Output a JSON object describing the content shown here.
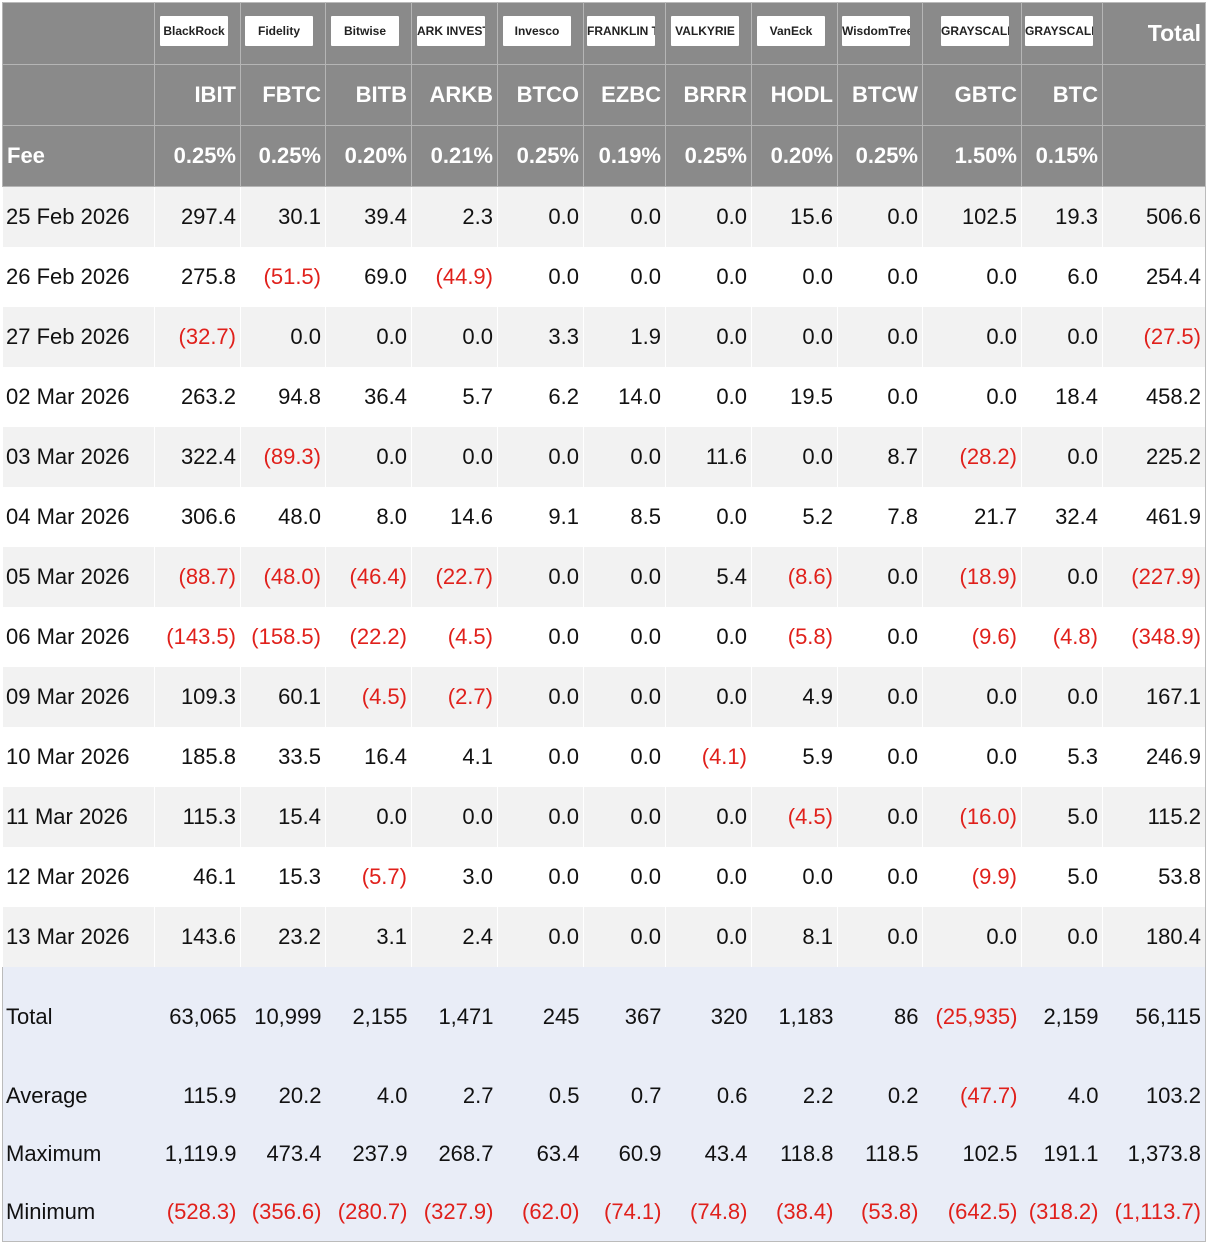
{
  "header": {
    "logos": [
      "BlackRock",
      "Fidelity",
      "Bitwise",
      "ARK INVEST",
      "Invesco",
      "FRANKLIN TEMPLETON",
      "VALKYRIE",
      "VanEck",
      "WisdomTree",
      "GRAYSCALE",
      "GRAYSCALE"
    ],
    "total_label": "Total",
    "tickers": [
      "IBIT",
      "FBTC",
      "BITB",
      "ARKB",
      "BTCO",
      "EZBC",
      "BRRR",
      "HODL",
      "BTCW",
      "GBTC",
      "BTC"
    ],
    "fee_label": "Fee",
    "fees": [
      "0.25%",
      "0.25%",
      "0.20%",
      "0.21%",
      "0.25%",
      "0.19%",
      "0.25%",
      "0.20%",
      "0.25%",
      "1.50%",
      "0.15%"
    ]
  },
  "rows": [
    {
      "date": "25 Feb 2026",
      "values": [
        "297.4",
        "30.1",
        "39.4",
        "2.3",
        "0.0",
        "0.0",
        "0.0",
        "15.6",
        "0.0",
        "102.5",
        "19.3",
        "506.6"
      ]
    },
    {
      "date": "26 Feb 2026",
      "values": [
        "275.8",
        "(51.5)",
        "69.0",
        "(44.9)",
        "0.0",
        "0.0",
        "0.0",
        "0.0",
        "0.0",
        "0.0",
        "6.0",
        "254.4"
      ]
    },
    {
      "date": "27 Feb 2026",
      "values": [
        "(32.7)",
        "0.0",
        "0.0",
        "0.0",
        "3.3",
        "1.9",
        "0.0",
        "0.0",
        "0.0",
        "0.0",
        "0.0",
        "(27.5)"
      ]
    },
    {
      "date": "02 Mar 2026",
      "values": [
        "263.2",
        "94.8",
        "36.4",
        "5.7",
        "6.2",
        "14.0",
        "0.0",
        "19.5",
        "0.0",
        "0.0",
        "18.4",
        "458.2"
      ]
    },
    {
      "date": "03 Mar 2026",
      "values": [
        "322.4",
        "(89.3)",
        "0.0",
        "0.0",
        "0.0",
        "0.0",
        "11.6",
        "0.0",
        "8.7",
        "(28.2)",
        "0.0",
        "225.2"
      ]
    },
    {
      "date": "04 Mar 2026",
      "values": [
        "306.6",
        "48.0",
        "8.0",
        "14.6",
        "9.1",
        "8.5",
        "0.0",
        "5.2",
        "7.8",
        "21.7",
        "32.4",
        "461.9"
      ]
    },
    {
      "date": "05 Mar 2026",
      "values": [
        "(88.7)",
        "(48.0)",
        "(46.4)",
        "(22.7)",
        "0.0",
        "0.0",
        "5.4",
        "(8.6)",
        "0.0",
        "(18.9)",
        "0.0",
        "(227.9)"
      ]
    },
    {
      "date": "06 Mar 2026",
      "values": [
        "(143.5)",
        "(158.5)",
        "(22.2)",
        "(4.5)",
        "0.0",
        "0.0",
        "0.0",
        "(5.8)",
        "0.0",
        "(9.6)",
        "(4.8)",
        "(348.9)"
      ]
    },
    {
      "date": "09 Mar 2026",
      "values": [
        "109.3",
        "60.1",
        "(4.5)",
        "(2.7)",
        "0.0",
        "0.0",
        "0.0",
        "4.9",
        "0.0",
        "0.0",
        "0.0",
        "167.1"
      ]
    },
    {
      "date": "10 Mar 2026",
      "values": [
        "185.8",
        "33.5",
        "16.4",
        "4.1",
        "0.0",
        "0.0",
        "(4.1)",
        "5.9",
        "0.0",
        "0.0",
        "5.3",
        "246.9"
      ]
    },
    {
      "date": "11 Mar 2026",
      "values": [
        "115.3",
        "15.4",
        "0.0",
        "0.0",
        "0.0",
        "0.0",
        "0.0",
        "(4.5)",
        "0.0",
        "(16.0)",
        "5.0",
        "115.2"
      ]
    },
    {
      "date": "12 Mar 2026",
      "values": [
        "46.1",
        "15.3",
        "(5.7)",
        "3.0",
        "0.0",
        "0.0",
        "0.0",
        "0.0",
        "0.0",
        "(9.9)",
        "5.0",
        "53.8"
      ]
    },
    {
      "date": "13 Mar 2026",
      "values": [
        "143.6",
        "23.2",
        "3.1",
        "2.4",
        "0.0",
        "0.0",
        "0.0",
        "8.1",
        "0.0",
        "0.0",
        "0.0",
        "180.4"
      ]
    }
  ],
  "summary": [
    {
      "label": "Total",
      "values": [
        "63,065",
        "10,999",
        "2,155",
        "1,471",
        "245",
        "367",
        "320",
        "1,183",
        "86",
        "(25,935)",
        "2,159",
        "56,115"
      ]
    },
    {
      "label": "Average",
      "values": [
        "115.9",
        "20.2",
        "4.0",
        "2.7",
        "0.5",
        "0.7",
        "0.6",
        "2.2",
        "0.2",
        "(47.7)",
        "4.0",
        "103.2"
      ]
    },
    {
      "label": "Maximum",
      "values": [
        "1,119.9",
        "473.4",
        "237.9",
        "268.7",
        "63.4",
        "60.9",
        "43.4",
        "118.8",
        "118.5",
        "102.5",
        "191.1",
        "1,373.8"
      ]
    },
    {
      "label": "Minimum",
      "values": [
        "(528.3)",
        "(356.6)",
        "(280.7)",
        "(327.9)",
        "(62.0)",
        "(74.1)",
        "(74.8)",
        "(38.4)",
        "(53.8)",
        "(642.5)",
        "(318.2)",
        "(1,113.7)"
      ]
    }
  ]
}
